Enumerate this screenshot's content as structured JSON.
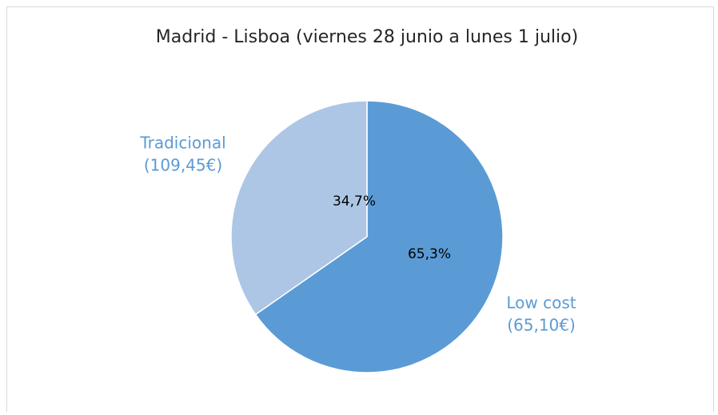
{
  "chart_data": {
    "type": "pie",
    "title": "Madrid - Lisboa  (viernes 28 junio a lunes 1 julio)",
    "categories": [
      "Low cost",
      "Tradicional"
    ],
    "category_notes": [
      "(65,10€)",
      "(109,45€)"
    ],
    "values": [
      65.3,
      34.7
    ],
    "value_labels": [
      "65,3%",
      "34,7%"
    ],
    "colors": [
      "#5b9bd5",
      "#adc6e6"
    ],
    "label_color": "#5b9bd5"
  }
}
